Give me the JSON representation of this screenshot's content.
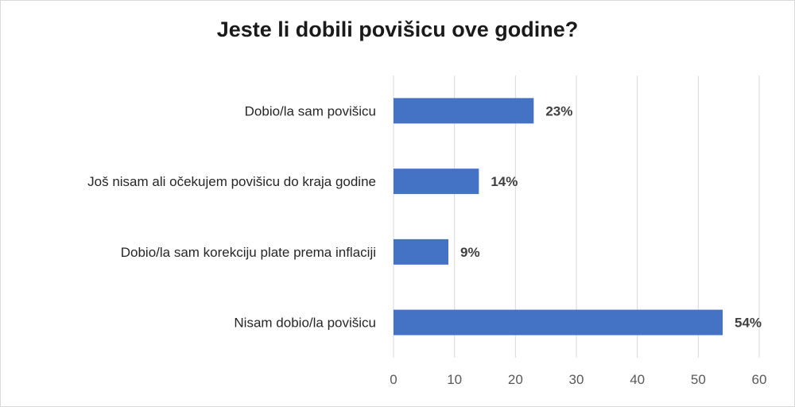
{
  "chart_data": {
    "type": "bar",
    "orientation": "horizontal",
    "title": "Jeste li dobili povišicu ove godine?",
    "xlabel": "",
    "ylabel": "",
    "categories": [
      "Dobio/la sam povišicu",
      "Još nisam ali očekujem povišicu do kraja godine",
      "Dobio/la sam korekciju plate prema inflaciji",
      "Nisam dobio/la povišicu"
    ],
    "values": [
      23,
      14,
      9,
      54
    ],
    "data_labels": [
      "23%",
      "14%",
      "9%",
      "54%"
    ],
    "xlim": [
      0,
      60
    ],
    "x_ticks": [
      0,
      10,
      20,
      30,
      40,
      50,
      60
    ],
    "grid": "vertical",
    "bar_color": "#4472c4",
    "grid_color": "#d9d9d9"
  }
}
